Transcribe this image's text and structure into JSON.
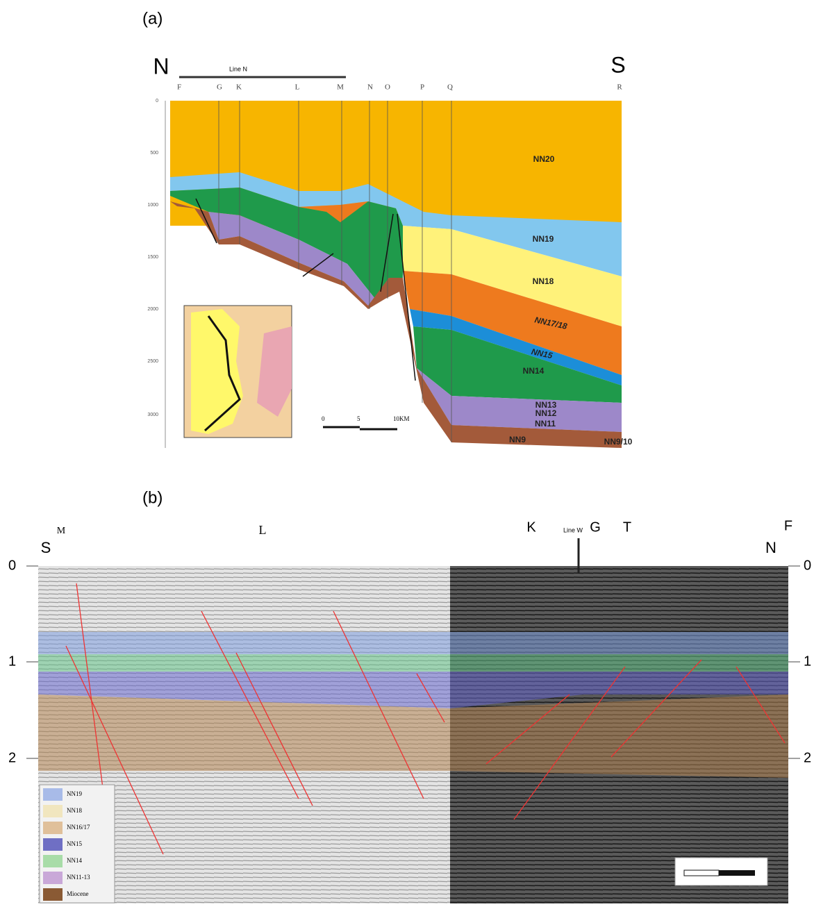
{
  "panel_a": {
    "label": "(a)",
    "north": "N",
    "south": "S",
    "line_label": "Line N",
    "wells": [
      "F",
      "G",
      "K",
      "L",
      "M",
      "N",
      "O",
      "P",
      "Q",
      "R"
    ],
    "depth_ticks": [
      "0",
      "500",
      "1000",
      "1500",
      "2000",
      "2500",
      "3000"
    ],
    "layers": [
      "NN20",
      "NN19",
      "NN18",
      "NN17/18",
      "NN15",
      "NN14",
      "NN13",
      "NN12",
      "NN11",
      "NN9",
      "NN9/10"
    ],
    "scale": [
      "0",
      "5",
      "10KM"
    ]
  },
  "panel_b": {
    "label": "(b)",
    "south": "S",
    "north": "N",
    "line_label": "Line W",
    "wells": [
      "M",
      "L",
      "K",
      "G",
      "T",
      "F"
    ],
    "time_ticks": [
      "0",
      "1",
      "2"
    ],
    "legend": [
      "NN19",
      "NN18",
      "NN16/17",
      "NN15",
      "NN14",
      "NN11-13",
      "Miocene"
    ]
  }
}
